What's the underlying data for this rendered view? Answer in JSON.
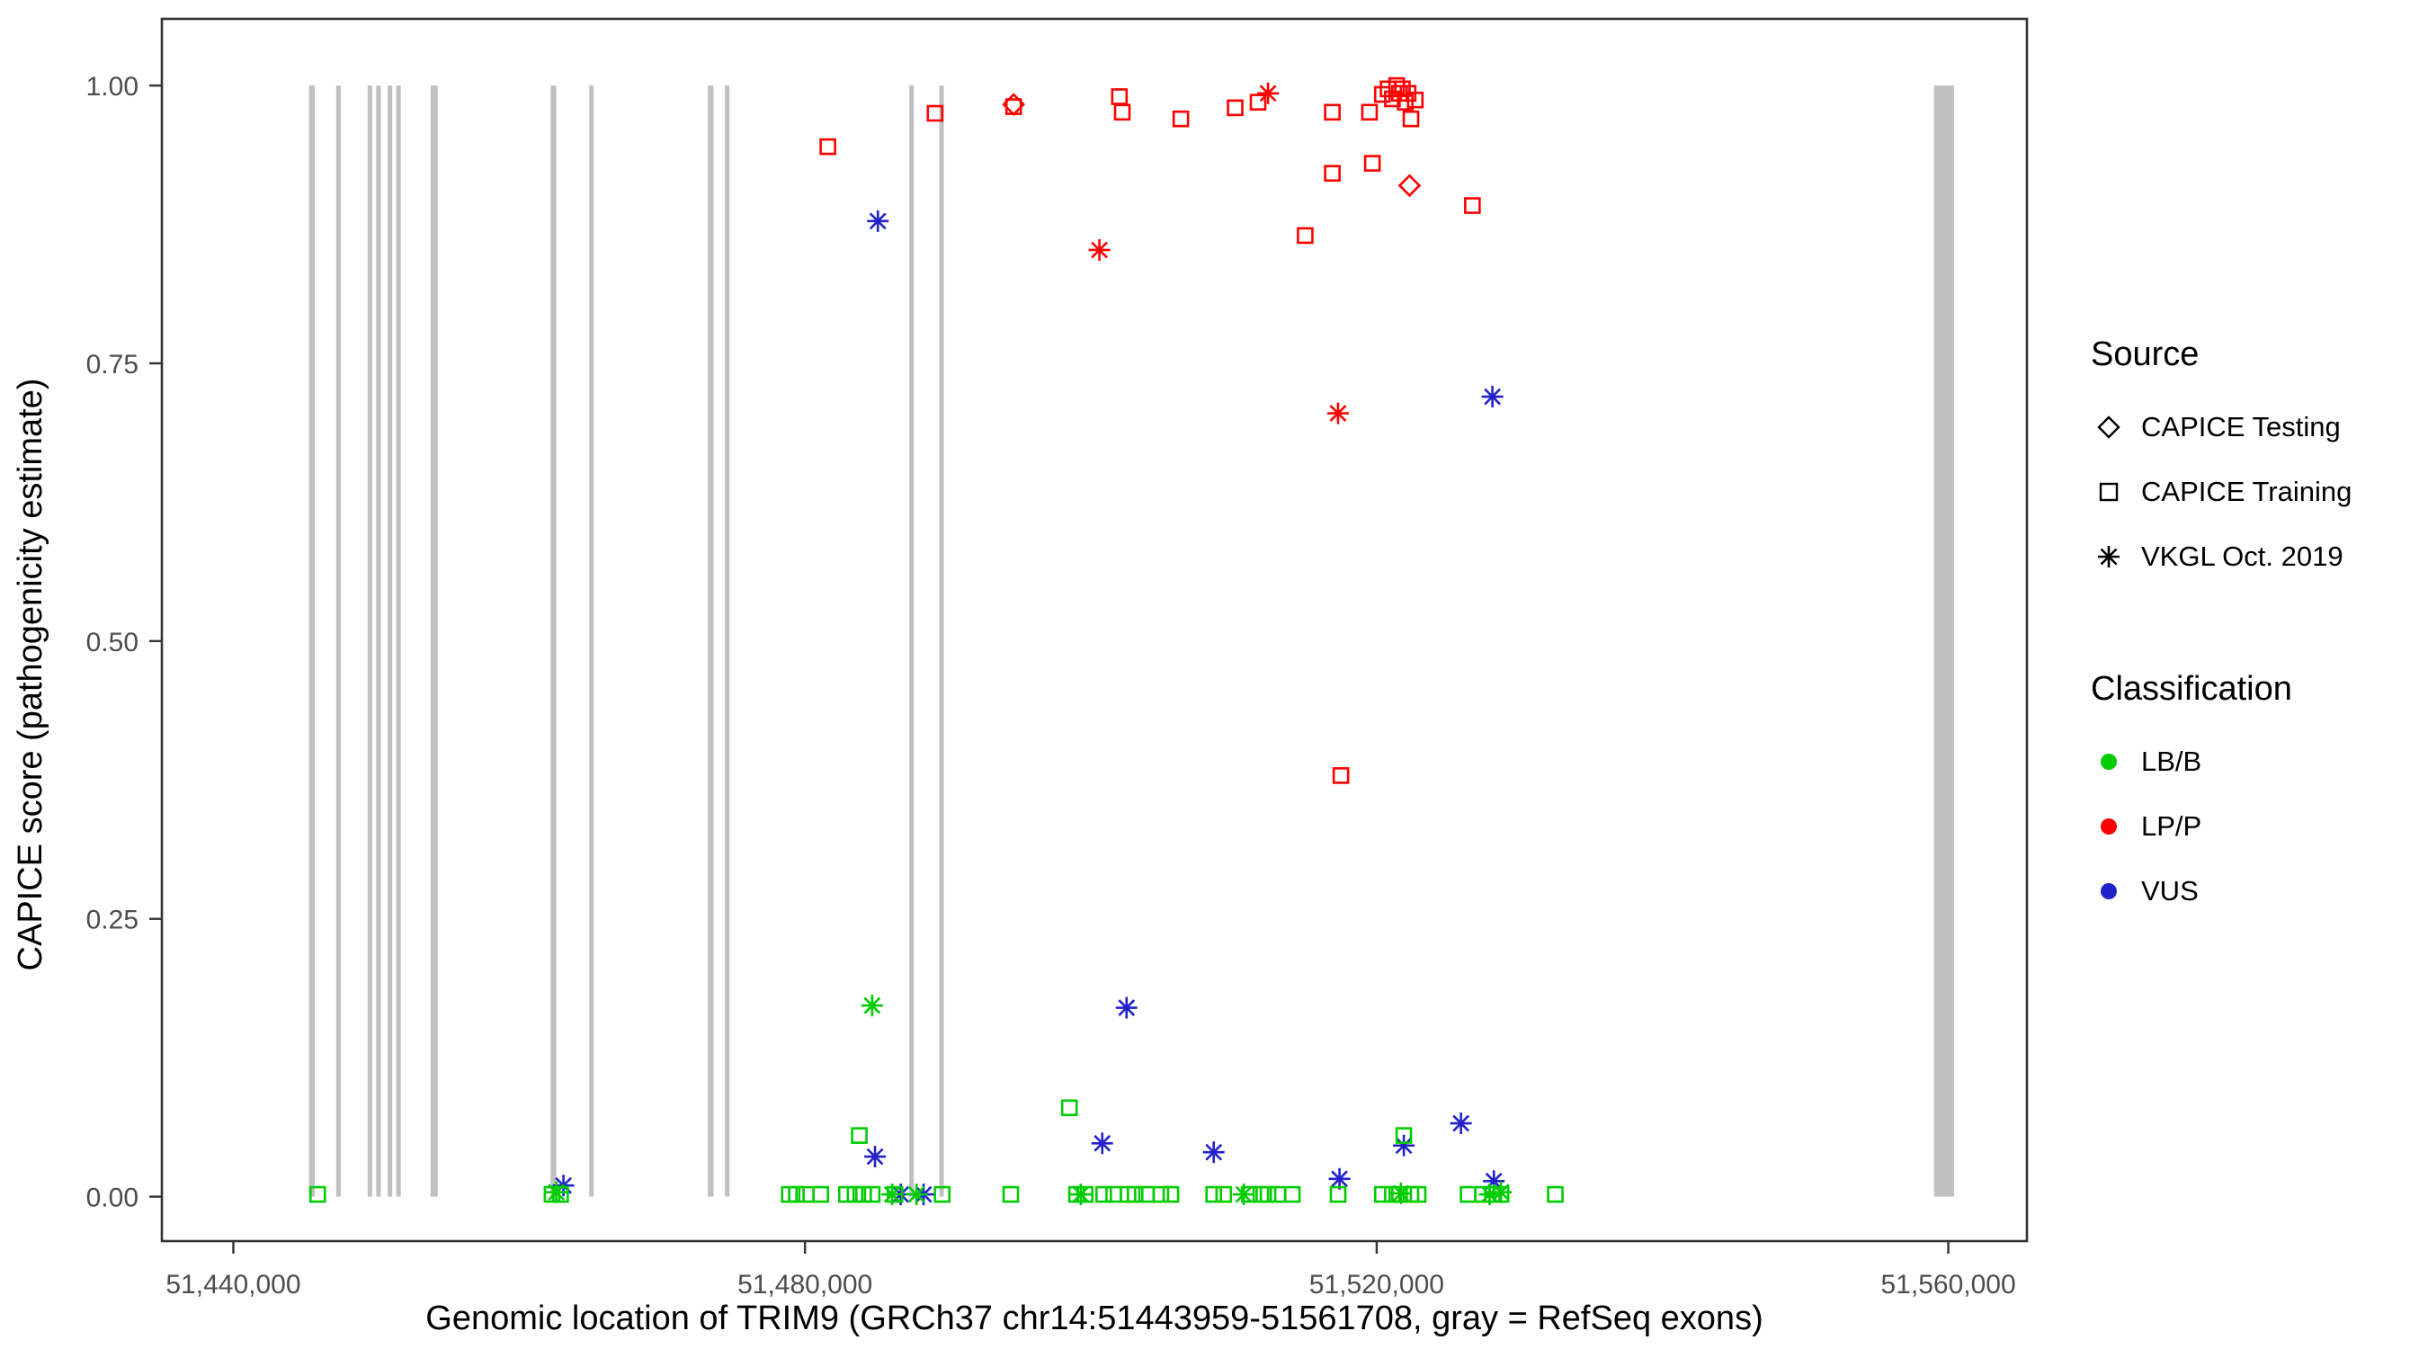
{
  "chart_data": {
    "type": "scatter",
    "title": "",
    "xlabel": "Genomic location of TRIM9 (GRCh37 chr14:51443959-51561708, gray = RefSeq exons)",
    "ylabel": "CAPICE score (pathogenicity estimate)",
    "xlim": [
      51435000,
      51565500
    ],
    "ylim": [
      -0.04,
      1.06
    ],
    "grid": false,
    "legend_position": "right",
    "x_ticks": [
      {
        "value": 51440000,
        "label": "51,440,000"
      },
      {
        "value": 51480000,
        "label": "51,480,000"
      },
      {
        "value": 51520000,
        "label": "51,520,000"
      },
      {
        "value": 51560000,
        "label": "51,560,000"
      }
    ],
    "y_ticks": [
      {
        "value": 0.0,
        "label": "0.00"
      },
      {
        "value": 0.25,
        "label": "0.25"
      },
      {
        "value": 0.5,
        "label": "0.50"
      },
      {
        "value": 0.75,
        "label": "0.75"
      },
      {
        "value": 1.0,
        "label": "1.00"
      }
    ],
    "exon_color": "#C0C0C0",
    "exon_y_range": [
      0,
      1
    ],
    "exons": [
      {
        "start": 51445300,
        "end": 51445700
      },
      {
        "start": 51447200,
        "end": 51447500
      },
      {
        "start": 51449400,
        "end": 51449700
      },
      {
        "start": 51450000,
        "end": 51450300
      },
      {
        "start": 51450800,
        "end": 51451100
      },
      {
        "start": 51451400,
        "end": 51451700
      },
      {
        "start": 51453800,
        "end": 51454300
      },
      {
        "start": 51462200,
        "end": 51462600
      },
      {
        "start": 51464900,
        "end": 51465200
      },
      {
        "start": 51473200,
        "end": 51473600
      },
      {
        "start": 51474400,
        "end": 51474700
      },
      {
        "start": 51487300,
        "end": 51487600
      },
      {
        "start": 51489400,
        "end": 51489700
      },
      {
        "start": 51559000,
        "end": 51560400
      }
    ],
    "colors": {
      "LB/B": "#00CC00",
      "LP/P": "#FF0000",
      "VUS": "#2222CC"
    },
    "shapes": {
      "CAPICE Testing": "diamond",
      "CAPICE Training": "square",
      "VKGL Oct. 2019": "asterisk"
    },
    "legend": {
      "source_title": "Source",
      "source_items": [
        {
          "label": "CAPICE Testing",
          "shape": "diamond"
        },
        {
          "label": "CAPICE Training",
          "shape": "square"
        },
        {
          "label": "VKGL Oct. 2019",
          "shape": "asterisk"
        }
      ],
      "classification_title": "Classification",
      "classification_items": [
        {
          "label": "LB/B",
          "color": "#00CC00"
        },
        {
          "label": "LP/P",
          "color": "#FF0000"
        },
        {
          "label": "VUS",
          "color": "#2222CC"
        }
      ]
    },
    "points": [
      {
        "x": 51481600,
        "y": 0.945,
        "source": "CAPICE Training",
        "class": "LP/P"
      },
      {
        "x": 51489100,
        "y": 0.975,
        "source": "CAPICE Training",
        "class": "LP/P"
      },
      {
        "x": 51494600,
        "y": 0.981,
        "source": "CAPICE Training",
        "class": "LP/P"
      },
      {
        "x": 51502000,
        "y": 0.99,
        "source": "CAPICE Training",
        "class": "LP/P"
      },
      {
        "x": 51502200,
        "y": 0.976,
        "source": "CAPICE Training",
        "class": "LP/P"
      },
      {
        "x": 51506300,
        "y": 0.97,
        "source": "CAPICE Training",
        "class": "LP/P"
      },
      {
        "x": 51510100,
        "y": 0.98,
        "source": "CAPICE Training",
        "class": "LP/P"
      },
      {
        "x": 51511700,
        "y": 0.985,
        "source": "CAPICE Training",
        "class": "LP/P"
      },
      {
        "x": 51516900,
        "y": 0.976,
        "source": "CAPICE Training",
        "class": "LP/P"
      },
      {
        "x": 51516900,
        "y": 0.921,
        "source": "CAPICE Training",
        "class": "LP/P"
      },
      {
        "x": 51515000,
        "y": 0.865,
        "source": "CAPICE Training",
        "class": "LP/P"
      },
      {
        "x": 51519700,
        "y": 0.93,
        "source": "CAPICE Training",
        "class": "LP/P"
      },
      {
        "x": 51517500,
        "y": 0.379,
        "source": "CAPICE Training",
        "class": "LP/P"
      },
      {
        "x": 51519500,
        "y": 0.976,
        "source": "CAPICE Training",
        "class": "LP/P"
      },
      {
        "x": 51520400,
        "y": 0.992,
        "source": "CAPICE Training",
        "class": "LP/P"
      },
      {
        "x": 51520800,
        "y": 0.997,
        "source": "CAPICE Training",
        "class": "LP/P"
      },
      {
        "x": 51521100,
        "y": 0.988,
        "source": "CAPICE Training",
        "class": "LP/P"
      },
      {
        "x": 51521400,
        "y": 1.0,
        "source": "CAPICE Training",
        "class": "LP/P"
      },
      {
        "x": 51521600,
        "y": 0.993,
        "source": "CAPICE Training",
        "class": "LP/P"
      },
      {
        "x": 51521800,
        "y": 0.997,
        "source": "CAPICE Training",
        "class": "LP/P"
      },
      {
        "x": 51522000,
        "y": 0.985,
        "source": "CAPICE Training",
        "class": "LP/P"
      },
      {
        "x": 51522200,
        "y": 0.993,
        "source": "CAPICE Training",
        "class": "LP/P"
      },
      {
        "x": 51522400,
        "y": 0.97,
        "source": "CAPICE Training",
        "class": "LP/P"
      },
      {
        "x": 51522700,
        "y": 0.987,
        "source": "CAPICE Training",
        "class": "LP/P"
      },
      {
        "x": 51526700,
        "y": 0.892,
        "source": "CAPICE Training",
        "class": "LP/P"
      },
      {
        "x": 51494600,
        "y": 0.983,
        "source": "CAPICE Testing",
        "class": "LP/P"
      },
      {
        "x": 51522300,
        "y": 0.91,
        "source": "CAPICE Testing",
        "class": "LP/P"
      },
      {
        "x": 51512400,
        "y": 0.993,
        "source": "VKGL Oct. 2019",
        "class": "LP/P"
      },
      {
        "x": 51500600,
        "y": 0.852,
        "source": "VKGL Oct. 2019",
        "class": "LP/P"
      },
      {
        "x": 51517300,
        "y": 0.705,
        "source": "VKGL Oct. 2019",
        "class": "LP/P"
      },
      {
        "x": 51485100,
        "y": 0.878,
        "source": "VKGL Oct. 2019",
        "class": "VUS"
      },
      {
        "x": 51528100,
        "y": 0.72,
        "source": "VKGL Oct. 2019",
        "class": "VUS"
      },
      {
        "x": 51502500,
        "y": 0.17,
        "source": "VKGL Oct. 2019",
        "class": "VUS"
      },
      {
        "x": 51500800,
        "y": 0.048,
        "source": "VKGL Oct. 2019",
        "class": "VUS"
      },
      {
        "x": 51508600,
        "y": 0.04,
        "source": "VKGL Oct. 2019",
        "class": "VUS"
      },
      {
        "x": 51484900,
        "y": 0.036,
        "source": "VKGL Oct. 2019",
        "class": "VUS"
      },
      {
        "x": 51517400,
        "y": 0.016,
        "source": "VKGL Oct. 2019",
        "class": "VUS"
      },
      {
        "x": 51521900,
        "y": 0.046,
        "source": "VKGL Oct. 2019",
        "class": "VUS"
      },
      {
        "x": 51525900,
        "y": 0.066,
        "source": "VKGL Oct. 2019",
        "class": "VUS"
      },
      {
        "x": 51528200,
        "y": 0.014,
        "source": "VKGL Oct. 2019",
        "class": "VUS"
      },
      {
        "x": 51463100,
        "y": 0.01,
        "source": "VKGL Oct. 2019",
        "class": "VUS"
      },
      {
        "x": 51486700,
        "y": 0.002,
        "source": "VKGL Oct. 2019",
        "class": "VUS"
      },
      {
        "x": 51488300,
        "y": 0.002,
        "source": "VKGL Oct. 2019",
        "class": "VUS"
      },
      {
        "x": 51462600,
        "y": 0.004,
        "source": "VKGL Oct. 2019",
        "class": "LB/B"
      },
      {
        "x": 51484700,
        "y": 0.172,
        "source": "VKGL Oct. 2019",
        "class": "LB/B"
      },
      {
        "x": 51486100,
        "y": 0.002,
        "source": "VKGL Oct. 2019",
        "class": "LB/B"
      },
      {
        "x": 51487800,
        "y": 0.002,
        "source": "VKGL Oct. 2019",
        "class": "LB/B"
      },
      {
        "x": 51499300,
        "y": 0.002,
        "source": "VKGL Oct. 2019",
        "class": "LB/B"
      },
      {
        "x": 51510700,
        "y": 0.002,
        "source": "VKGL Oct. 2019",
        "class": "LB/B"
      },
      {
        "x": 51521700,
        "y": 0.003,
        "source": "VKGL Oct. 2019",
        "class": "LB/B"
      },
      {
        "x": 51527900,
        "y": 0.002,
        "source": "VKGL Oct. 2019",
        "class": "LB/B"
      },
      {
        "x": 51528700,
        "y": 0.004,
        "source": "VKGL Oct. 2019",
        "class": "LB/B"
      },
      {
        "x": 51445900,
        "y": 0.002,
        "source": "CAPICE Training",
        "class": "LB/B"
      },
      {
        "x": 51462300,
        "y": 0.002,
        "source": "CAPICE Training",
        "class": "LB/B"
      },
      {
        "x": 51462900,
        "y": 0.002,
        "source": "CAPICE Training",
        "class": "LB/B"
      },
      {
        "x": 51478900,
        "y": 0.002,
        "source": "CAPICE Training",
        "class": "LB/B"
      },
      {
        "x": 51479400,
        "y": 0.002,
        "source": "CAPICE Training",
        "class": "LB/B"
      },
      {
        "x": 51480100,
        "y": 0.002,
        "source": "CAPICE Training",
        "class": "LB/B"
      },
      {
        "x": 51481100,
        "y": 0.002,
        "source": "CAPICE Training",
        "class": "LB/B"
      },
      {
        "x": 51482900,
        "y": 0.002,
        "source": "CAPICE Training",
        "class": "LB/B"
      },
      {
        "x": 51483500,
        "y": 0.002,
        "source": "CAPICE Training",
        "class": "LB/B"
      },
      {
        "x": 51483800,
        "y": 0.055,
        "source": "CAPICE Training",
        "class": "LB/B"
      },
      {
        "x": 51484100,
        "y": 0.002,
        "source": "CAPICE Training",
        "class": "LB/B"
      },
      {
        "x": 51484700,
        "y": 0.002,
        "source": "CAPICE Training",
        "class": "LB/B"
      },
      {
        "x": 51486300,
        "y": 0.002,
        "source": "CAPICE Training",
        "class": "LB/B"
      },
      {
        "x": 51489600,
        "y": 0.002,
        "source": "CAPICE Training",
        "class": "LB/B"
      },
      {
        "x": 51494400,
        "y": 0.002,
        "source": "CAPICE Training",
        "class": "LB/B"
      },
      {
        "x": 51498500,
        "y": 0.08,
        "source": "CAPICE Training",
        "class": "LB/B"
      },
      {
        "x": 51499000,
        "y": 0.002,
        "source": "CAPICE Training",
        "class": "LB/B"
      },
      {
        "x": 51499600,
        "y": 0.002,
        "source": "CAPICE Training",
        "class": "LB/B"
      },
      {
        "x": 51500900,
        "y": 0.002,
        "source": "CAPICE Training",
        "class": "LB/B"
      },
      {
        "x": 51501600,
        "y": 0.002,
        "source": "CAPICE Training",
        "class": "LB/B"
      },
      {
        "x": 51502600,
        "y": 0.002,
        "source": "CAPICE Training",
        "class": "LB/B"
      },
      {
        "x": 51503100,
        "y": 0.002,
        "source": "CAPICE Training",
        "class": "LB/B"
      },
      {
        "x": 51503900,
        "y": 0.002,
        "source": "CAPICE Training",
        "class": "LB/B"
      },
      {
        "x": 51504900,
        "y": 0.002,
        "source": "CAPICE Training",
        "class": "LB/B"
      },
      {
        "x": 51505600,
        "y": 0.002,
        "source": "CAPICE Training",
        "class": "LB/B"
      },
      {
        "x": 51508600,
        "y": 0.002,
        "source": "CAPICE Training",
        "class": "LB/B"
      },
      {
        "x": 51509300,
        "y": 0.002,
        "source": "CAPICE Training",
        "class": "LB/B"
      },
      {
        "x": 51511100,
        "y": 0.002,
        "source": "CAPICE Training",
        "class": "LB/B"
      },
      {
        "x": 51511900,
        "y": 0.002,
        "source": "CAPICE Training",
        "class": "LB/B"
      },
      {
        "x": 51512400,
        "y": 0.002,
        "source": "CAPICE Training",
        "class": "LB/B"
      },
      {
        "x": 51513100,
        "y": 0.002,
        "source": "CAPICE Training",
        "class": "LB/B"
      },
      {
        "x": 51514100,
        "y": 0.002,
        "source": "CAPICE Training",
        "class": "LB/B"
      },
      {
        "x": 51517300,
        "y": 0.002,
        "source": "CAPICE Training",
        "class": "LB/B"
      },
      {
        "x": 51520400,
        "y": 0.002,
        "source": "CAPICE Training",
        "class": "LB/B"
      },
      {
        "x": 51521100,
        "y": 0.002,
        "source": "CAPICE Training",
        "class": "LB/B"
      },
      {
        "x": 51521600,
        "y": 0.002,
        "source": "CAPICE Training",
        "class": "LB/B"
      },
      {
        "x": 51521900,
        "y": 0.055,
        "source": "CAPICE Training",
        "class": "LB/B"
      },
      {
        "x": 51522400,
        "y": 0.002,
        "source": "CAPICE Training",
        "class": "LB/B"
      },
      {
        "x": 51522900,
        "y": 0.002,
        "source": "CAPICE Training",
        "class": "LB/B"
      },
      {
        "x": 51526400,
        "y": 0.002,
        "source": "CAPICE Training",
        "class": "LB/B"
      },
      {
        "x": 51527400,
        "y": 0.002,
        "source": "CAPICE Training",
        "class": "LB/B"
      },
      {
        "x": 51528100,
        "y": 0.002,
        "source": "CAPICE Training",
        "class": "LB/B"
      },
      {
        "x": 51528700,
        "y": 0.002,
        "source": "CAPICE Training",
        "class": "LB/B"
      },
      {
        "x": 51532500,
        "y": 0.002,
        "source": "CAPICE Training",
        "class": "LB/B"
      }
    ]
  }
}
